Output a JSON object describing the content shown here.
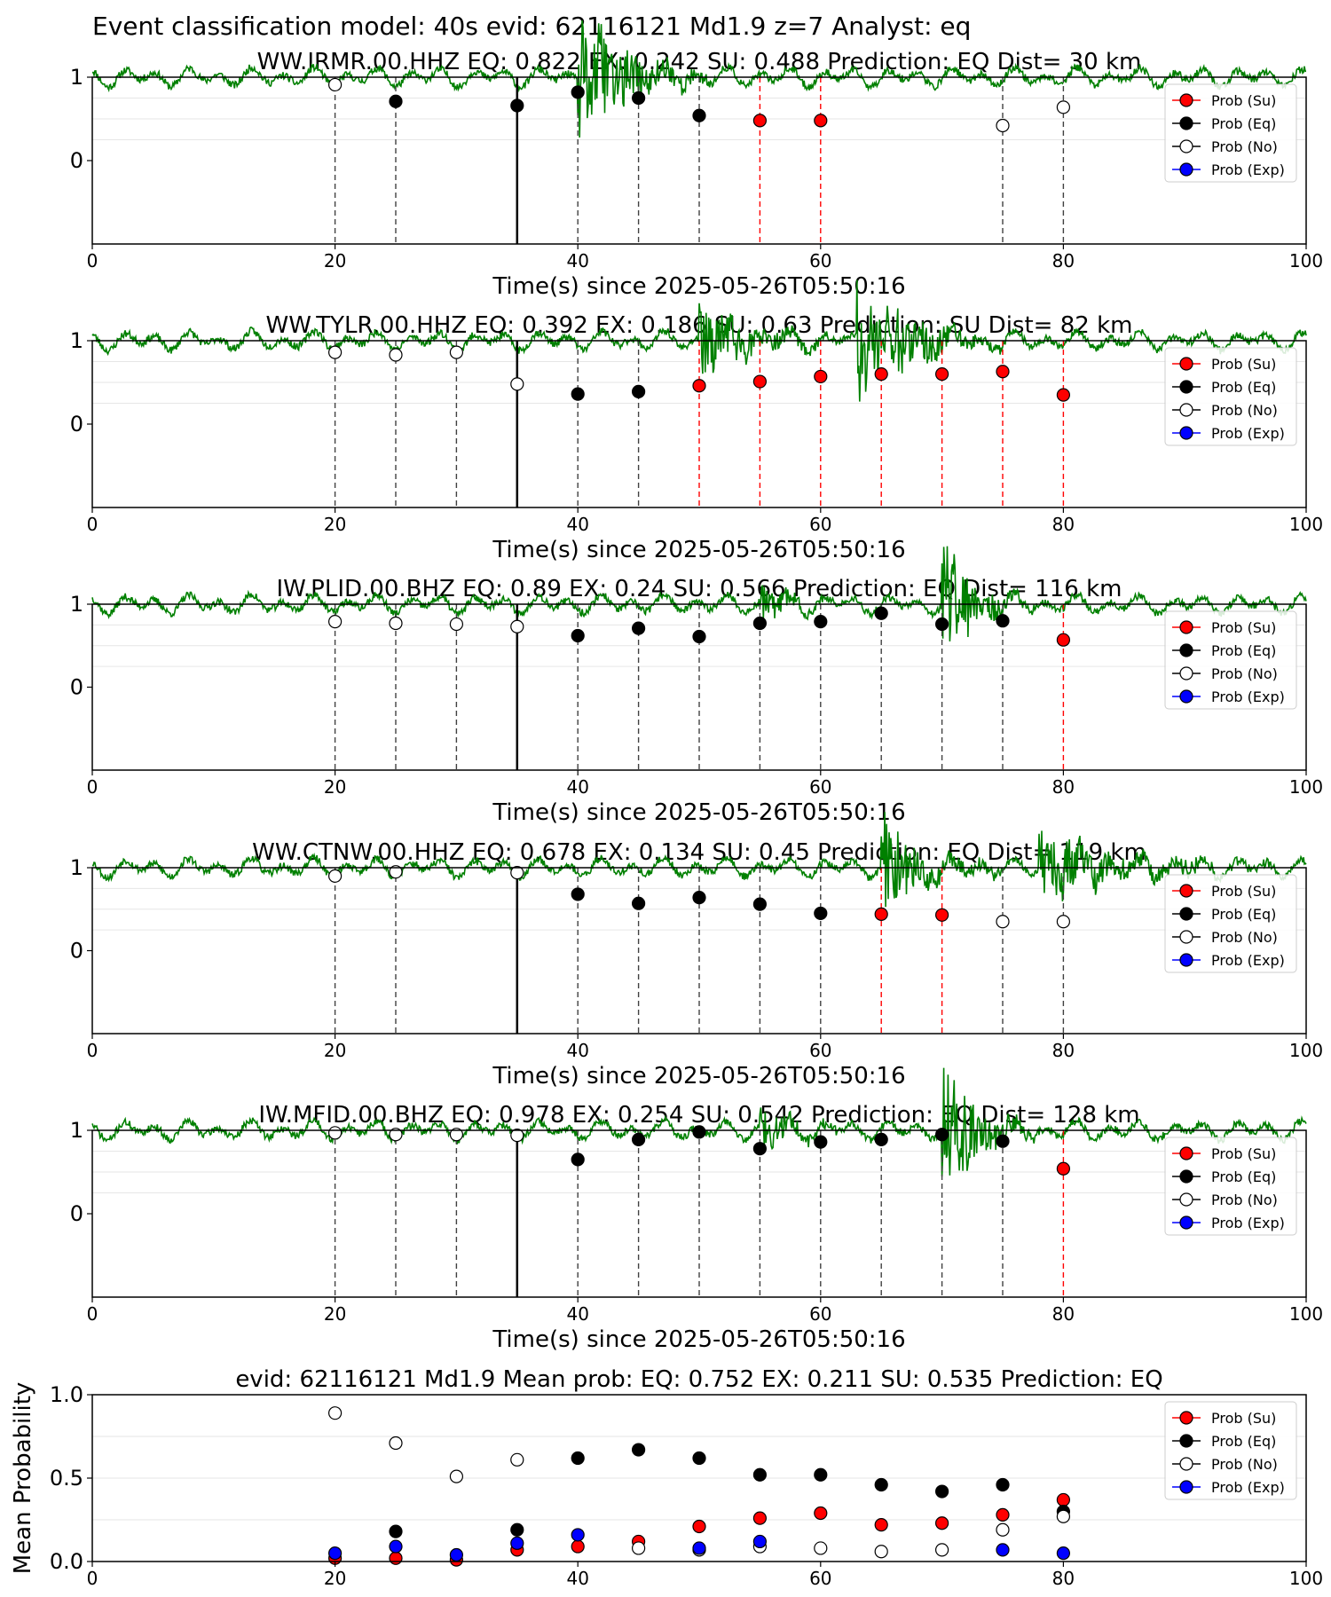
{
  "suptitle": "Event classification model: 40s evid: 62116121 Md1.9 z=7 Analyst: eq",
  "colors": {
    "su": "#ff0000",
    "eq": "#000000",
    "no": "#ffffff",
    "exp": "#0000ff",
    "trace": "#008000",
    "vline_eq": "#404040",
    "vline_su": "#ff0000"
  },
  "legend": [
    "Prob (Su)",
    "Prob (Eq)",
    "Prob (No)",
    "Prob (Exp)"
  ],
  "chart_data": [
    {
      "type": "scatter",
      "title": "WW.IRMR.00.HHZ   EQ: 0.822  EX: 0.242  SU: 0.488   Prediction: EQ    Dist= 30 km",
      "xlabel": "Time(s) since 2025-05-26T05:50:16",
      "xlim": [
        0,
        100
      ],
      "xticks": [
        "0",
        "20",
        "40",
        "60",
        "80",
        "100"
      ],
      "yticks": [
        "1",
        "0"
      ],
      "ylim": [
        -1,
        1
      ],
      "pick": 35,
      "seed": 11,
      "bursts": [
        {
          "t": 40,
          "amp": 0.9,
          "dur": 12
        }
      ],
      "points": [
        {
          "x": 20,
          "y": 0.91,
          "c": "no"
        },
        {
          "x": 25,
          "y": 0.71,
          "c": "eq"
        },
        {
          "x": 35,
          "y": 0.66,
          "c": "eq"
        },
        {
          "x": 40,
          "y": 0.82,
          "c": "eq"
        },
        {
          "x": 45,
          "y": 0.75,
          "c": "eq"
        },
        {
          "x": 50,
          "y": 0.54,
          "c": "eq"
        },
        {
          "x": 55,
          "y": 0.48,
          "c": "su"
        },
        {
          "x": 60,
          "y": 0.48,
          "c": "su"
        },
        {
          "x": 75,
          "y": 0.42,
          "c": "no"
        },
        {
          "x": 80,
          "y": 0.64,
          "c": "no"
        }
      ]
    },
    {
      "type": "scatter",
      "title": "WW.TYLR.00.HHZ   EQ: 0.392  EX: 0.186  SU: 0.63   Prediction: SU    Dist= 82 km",
      "xlabel": "Time(s) since 2025-05-26T05:50:16",
      "xlim": [
        0,
        100
      ],
      "xticks": [
        "0",
        "20",
        "40",
        "60",
        "80",
        "100"
      ],
      "yticks": [
        "1",
        "0"
      ],
      "ylim": [
        -1,
        1
      ],
      "pick": 35,
      "seed": 23,
      "bursts": [
        {
          "t": 50,
          "amp": 0.45,
          "dur": 12
        },
        {
          "t": 63,
          "amp": 0.9,
          "dur": 12
        }
      ],
      "points": [
        {
          "x": 20,
          "y": 0.86,
          "c": "no"
        },
        {
          "x": 25,
          "y": 0.83,
          "c": "no"
        },
        {
          "x": 30,
          "y": 0.86,
          "c": "no"
        },
        {
          "x": 35,
          "y": 0.48,
          "c": "no"
        },
        {
          "x": 40,
          "y": 0.36,
          "c": "eq"
        },
        {
          "x": 45,
          "y": 0.39,
          "c": "eq"
        },
        {
          "x": 50,
          "y": 0.46,
          "c": "su"
        },
        {
          "x": 55,
          "y": 0.51,
          "c": "su"
        },
        {
          "x": 60,
          "y": 0.57,
          "c": "su"
        },
        {
          "x": 65,
          "y": 0.6,
          "c": "su"
        },
        {
          "x": 70,
          "y": 0.6,
          "c": "su"
        },
        {
          "x": 75,
          "y": 0.63,
          "c": "su"
        },
        {
          "x": 80,
          "y": 0.35,
          "c": "su"
        }
      ]
    },
    {
      "type": "scatter",
      "title": "IW.PLID.00.BHZ   EQ: 0.89  EX: 0.24  SU: 0.566   Prediction: EQ    Dist= 116 km",
      "xlabel": "Time(s) since 2025-05-26T05:50:16",
      "xlim": [
        0,
        100
      ],
      "xticks": [
        "0",
        "20",
        "40",
        "60",
        "80",
        "100"
      ],
      "yticks": [
        "1",
        "0"
      ],
      "ylim": [
        -1,
        1
      ],
      "pick": 35,
      "seed": 37,
      "bursts": [
        {
          "t": 55,
          "amp": 0.25,
          "dur": 8
        },
        {
          "t": 70,
          "amp": 0.75,
          "dur": 8
        }
      ],
      "points": [
        {
          "x": 20,
          "y": 0.79,
          "c": "no"
        },
        {
          "x": 25,
          "y": 0.77,
          "c": "no"
        },
        {
          "x": 30,
          "y": 0.76,
          "c": "no"
        },
        {
          "x": 35,
          "y": 0.73,
          "c": "no"
        },
        {
          "x": 40,
          "y": 0.62,
          "c": "eq"
        },
        {
          "x": 45,
          "y": 0.71,
          "c": "eq"
        },
        {
          "x": 50,
          "y": 0.61,
          "c": "eq"
        },
        {
          "x": 55,
          "y": 0.77,
          "c": "eq"
        },
        {
          "x": 60,
          "y": 0.79,
          "c": "eq"
        },
        {
          "x": 65,
          "y": 0.89,
          "c": "eq"
        },
        {
          "x": 70,
          "y": 0.76,
          "c": "eq"
        },
        {
          "x": 75,
          "y": 0.8,
          "c": "eq"
        },
        {
          "x": 80,
          "y": 0.57,
          "c": "su"
        }
      ]
    },
    {
      "type": "scatter",
      "title": "WW.CTNW.00.HHZ   EQ: 0.678  EX: 0.134  SU: 0.45   Prediction: EQ    Dist= 119 km",
      "xlabel": "Time(s) since 2025-05-26T05:50:16",
      "xlim": [
        0,
        100
      ],
      "xticks": [
        "0",
        "20",
        "40",
        "60",
        "80",
        "100"
      ],
      "yticks": [
        "1",
        "0"
      ],
      "ylim": [
        -1,
        1
      ],
      "pick": 35,
      "seed": 53,
      "bursts": [
        {
          "t": 65,
          "amp": 0.7,
          "dur": 10
        },
        {
          "t": 78,
          "amp": 0.45,
          "dur": 20
        }
      ],
      "points": [
        {
          "x": 20,
          "y": 0.9,
          "c": "no"
        },
        {
          "x": 25,
          "y": 0.95,
          "c": "no"
        },
        {
          "x": 35,
          "y": 0.94,
          "c": "no"
        },
        {
          "x": 40,
          "y": 0.68,
          "c": "eq"
        },
        {
          "x": 45,
          "y": 0.57,
          "c": "eq"
        },
        {
          "x": 50,
          "y": 0.64,
          "c": "eq"
        },
        {
          "x": 55,
          "y": 0.56,
          "c": "eq"
        },
        {
          "x": 60,
          "y": 0.45,
          "c": "eq"
        },
        {
          "x": 65,
          "y": 0.44,
          "c": "su"
        },
        {
          "x": 70,
          "y": 0.43,
          "c": "su"
        },
        {
          "x": 75,
          "y": 0.35,
          "c": "no"
        },
        {
          "x": 80,
          "y": 0.35,
          "c": "no"
        }
      ]
    },
    {
      "type": "scatter",
      "title": "IW.MFID.00.BHZ   EQ: 0.978  EX: 0.254  SU: 0.542   Prediction: EQ    Dist= 128 km",
      "xlabel": "Time(s) since 2025-05-26T05:50:16",
      "xlim": [
        0,
        100
      ],
      "xticks": [
        "0",
        "20",
        "40",
        "60",
        "80",
        "100"
      ],
      "yticks": [
        "1",
        "0"
      ],
      "ylim": [
        -1,
        1
      ],
      "pick": 35,
      "seed": 71,
      "bursts": [
        {
          "t": 55,
          "amp": 0.3,
          "dur": 8
        },
        {
          "t": 70,
          "amp": 0.9,
          "dur": 8
        }
      ],
      "points": [
        {
          "x": 20,
          "y": 0.97,
          "c": "no"
        },
        {
          "x": 25,
          "y": 0.95,
          "c": "no"
        },
        {
          "x": 30,
          "y": 0.95,
          "c": "no"
        },
        {
          "x": 35,
          "y": 0.94,
          "c": "no"
        },
        {
          "x": 40,
          "y": 0.65,
          "c": "eq"
        },
        {
          "x": 45,
          "y": 0.89,
          "c": "eq"
        },
        {
          "x": 50,
          "y": 0.98,
          "c": "eq"
        },
        {
          "x": 55,
          "y": 0.78,
          "c": "eq"
        },
        {
          "x": 60,
          "y": 0.86,
          "c": "eq"
        },
        {
          "x": 65,
          "y": 0.89,
          "c": "eq"
        },
        {
          "x": 70,
          "y": 0.95,
          "c": "eq"
        },
        {
          "x": 75,
          "y": 0.87,
          "c": "eq"
        },
        {
          "x": 80,
          "y": 0.54,
          "c": "su"
        }
      ]
    },
    {
      "type": "scatter",
      "title": "evid: 62116121  Md1.9   Mean prob:   EQ: 0.752  EX: 0.211  SU: 0.535   Prediction: EQ",
      "xlabel": "",
      "ylabel": "Mean Probability",
      "xlim": [
        0,
        100
      ],
      "xticks": [
        "0",
        "20",
        "40",
        "60",
        "80",
        "100"
      ],
      "ylim": [
        0,
        1
      ],
      "yticks": [
        "1.0",
        "0.5",
        "0.0"
      ],
      "x": [
        20,
        25,
        30,
        35,
        40,
        45,
        50,
        55,
        60,
        65,
        70,
        75,
        80
      ],
      "series": [
        {
          "name": "Prob (Su)",
          "c": "su",
          "values": [
            0.02,
            0.02,
            0.01,
            0.07,
            0.09,
            0.12,
            0.21,
            0.26,
            0.29,
            0.22,
            0.23,
            0.28,
            0.37
          ]
        },
        {
          "name": "Prob (Eq)",
          "c": "eq",
          "values": [
            null,
            0.18,
            null,
            0.19,
            0.62,
            0.67,
            0.62,
            0.52,
            0.52,
            0.46,
            0.42,
            0.46,
            0.3
          ]
        },
        {
          "name": "Prob (No)",
          "c": "no",
          "values": [
            0.89,
            0.71,
            0.51,
            0.61,
            null,
            0.08,
            0.07,
            0.09,
            0.08,
            0.06,
            0.07,
            0.19,
            0.27
          ]
        },
        {
          "name": "Prob (Exp)",
          "c": "exp",
          "values": [
            0.05,
            0.09,
            0.04,
            0.11,
            0.16,
            null,
            0.08,
            0.12,
            null,
            null,
            null,
            0.07,
            0.05
          ]
        }
      ]
    }
  ]
}
